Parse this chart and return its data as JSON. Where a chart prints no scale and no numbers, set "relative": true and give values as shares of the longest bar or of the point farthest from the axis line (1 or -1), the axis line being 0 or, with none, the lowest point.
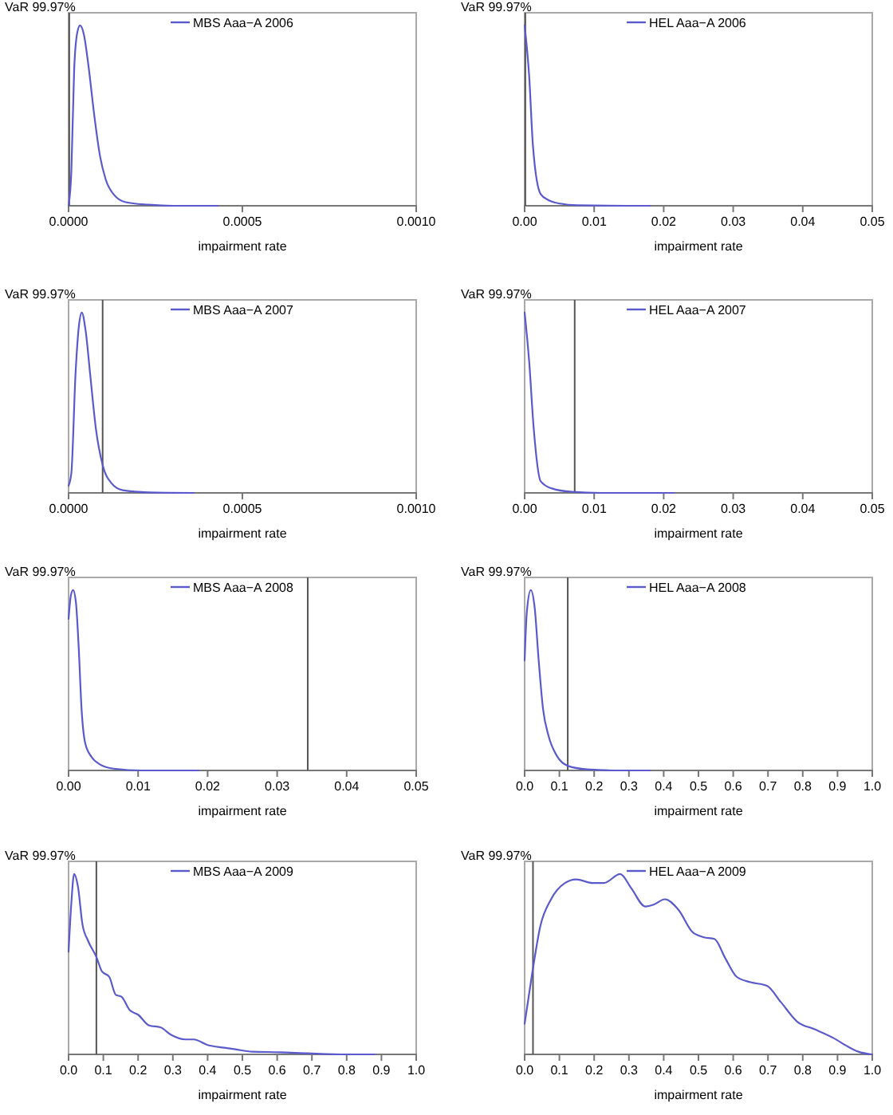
{
  "chart_data": [
    {
      "type": "line",
      "relative": true,
      "xlabel": "impairment rate",
      "xlim": [
        0,
        0.001
      ],
      "xticks": [
        {
          "value": 0,
          "label": "0.0000"
        },
        {
          "value": 0.0005,
          "label": "0.0005"
        },
        {
          "value": 0.001,
          "label": "0.0010"
        }
      ],
      "legend": "top",
      "annotations": [
        "VaR 99.97%"
      ],
      "ref_lines": [
        {
          "axis": "x",
          "value": 2e-06,
          "color": "#555555"
        }
      ],
      "series": [
        {
          "name": "MBS Aaa−A 2006",
          "color": "#5a5acd",
          "x": [
            0,
            8e-06,
            1.6e-05,
            2.5e-05,
            3.3e-05,
            4.4e-05,
            5.7e-05,
            7.4e-05,
            9e-05,
            0.000107,
            0.000131,
            0.000164,
            0.00023,
            0.0003,
            0.00043
          ],
          "values": [
            0,
            0.19,
            0.75,
            0.96,
            1,
            0.95,
            0.78,
            0.5,
            0.28,
            0.145,
            0.06,
            0.02,
            0.006,
            0,
            0
          ]
        }
      ]
    },
    {
      "type": "line",
      "relative": true,
      "xlabel": "impairment rate",
      "xlim": [
        0,
        0.05
      ],
      "xticks": [
        {
          "value": 0,
          "label": "0.00"
        },
        {
          "value": 0.01,
          "label": "0.01"
        },
        {
          "value": 0.02,
          "label": "0.02"
        },
        {
          "value": 0.03,
          "label": "0.03"
        },
        {
          "value": 0.04,
          "label": "0.04"
        },
        {
          "value": 0.05,
          "label": "0.05"
        }
      ],
      "legend": "top",
      "annotations": [
        "VaR 99.97%"
      ],
      "ref_lines": [
        {
          "axis": "x",
          "value": 0.0001,
          "color": "#555555"
        }
      ],
      "series": [
        {
          "name": "HEL Aaa−A 2006",
          "color": "#5a5acd",
          "x": [
            0,
            0.00065,
            0.0012,
            0.0023,
            0.0035,
            0.0051,
            0.0076,
            0.015,
            0.018
          ],
          "values": [
            1,
            0.72,
            0.33,
            0.065,
            0.03,
            0.012,
            0.003,
            0,
            0
          ]
        }
      ]
    },
    {
      "type": "line",
      "relative": true,
      "xlabel": "impairment rate",
      "xlim": [
        0,
        0.001
      ],
      "xticks": [
        {
          "value": 0,
          "label": "0.0000"
        },
        {
          "value": 0.0005,
          "label": "0.0005"
        },
        {
          "value": 0.001,
          "label": "0.0010"
        }
      ],
      "legend": "top",
      "annotations": [
        "VaR 99.97%"
      ],
      "ref_lines": [
        {
          "axis": "x",
          "value": 9.8e-05,
          "color": "#555555"
        }
      ],
      "series": [
        {
          "name": "MBS Aaa−A 2007",
          "color": "#5a5acd",
          "x": [
            0,
            8e-06,
            2e-05,
            3e-05,
            3.8e-05,
            4.9e-05,
            6.2e-05,
            7.9e-05,
            9.8e-05,
            0.000123,
            0.000156,
            0.00023,
            0.00036
          ],
          "values": [
            0.04,
            0.11,
            0.66,
            0.93,
            1,
            0.9,
            0.66,
            0.35,
            0.155,
            0.055,
            0.015,
            0.003,
            0
          ]
        }
      ]
    },
    {
      "type": "line",
      "relative": true,
      "xlabel": "impairment rate",
      "xlim": [
        0,
        0.05
      ],
      "xticks": [
        {
          "value": 0,
          "label": "0.00"
        },
        {
          "value": 0.01,
          "label": "0.01"
        },
        {
          "value": 0.02,
          "label": "0.02"
        },
        {
          "value": 0.03,
          "label": "0.03"
        },
        {
          "value": 0.04,
          "label": "0.04"
        },
        {
          "value": 0.05,
          "label": "0.05"
        }
      ],
      "legend": "top",
      "annotations": [
        "VaR 99.97%"
      ],
      "ref_lines": [
        {
          "axis": "x",
          "value": 0.0072,
          "color": "#555555"
        }
      ],
      "series": [
        {
          "name": "HEL Aaa−A 2007",
          "color": "#5a5acd",
          "x": [
            0,
            0.00065,
            0.0013,
            0.0023,
            0.0039,
            0.0068,
            0.011,
            0.0215
          ],
          "values": [
            1,
            0.73,
            0.36,
            0.065,
            0.025,
            0.006,
            0,
            0
          ]
        }
      ]
    },
    {
      "type": "line",
      "relative": true,
      "xlabel": "impairment rate",
      "xlim": [
        0,
        0.05
      ],
      "xticks": [
        {
          "value": 0,
          "label": "0.00"
        },
        {
          "value": 0.01,
          "label": "0.01"
        },
        {
          "value": 0.02,
          "label": "0.02"
        },
        {
          "value": 0.03,
          "label": "0.03"
        },
        {
          "value": 0.04,
          "label": "0.04"
        },
        {
          "value": 0.05,
          "label": "0.05"
        }
      ],
      "legend": "top",
      "annotations": [
        "VaR 99.97%"
      ],
      "ref_lines": [
        {
          "axis": "x",
          "value": 0.0344,
          "color": "#555555"
        }
      ],
      "series": [
        {
          "name": "MBS Aaa−A 2008",
          "color": "#5a5acd",
          "x": [
            0,
            0.00033,
            0.00065,
            0.00106,
            0.00146,
            0.00187,
            0.0024,
            0.0033,
            0.0045,
            0.0065,
            0.0106,
            0.0187
          ],
          "values": [
            0.84,
            0.97,
            1,
            0.93,
            0.68,
            0.34,
            0.15,
            0.075,
            0.034,
            0.01,
            0,
            0
          ]
        }
      ]
    },
    {
      "type": "line",
      "relative": true,
      "xlabel": "impairment rate",
      "xlim": [
        0,
        1
      ],
      "xticks": [
        {
          "value": 0,
          "label": "0.0"
        },
        0.1,
        0.2,
        0.3,
        0.4,
        0.5,
        0.6,
        0.7,
        0.8,
        0.9,
        {
          "value": 1,
          "label": "1.0"
        }
      ],
      "legend": "top",
      "annotations": [
        "VaR 99.97%"
      ],
      "ref_lines": [
        {
          "axis": "x",
          "value": 0.124,
          "color": "#555555"
        }
      ],
      "series": [
        {
          "name": "HEL Aaa−A 2008",
          "color": "#5a5acd",
          "x": [
            0,
            0.0064,
            0.0177,
            0.029,
            0.04,
            0.053,
            0.069,
            0.093,
            0.125,
            0.18,
            0.26,
            0.36
          ],
          "values": [
            0.61,
            0.88,
            1,
            0.9,
            0.62,
            0.34,
            0.19,
            0.08,
            0.025,
            0.006,
            0,
            0
          ]
        }
      ]
    },
    {
      "type": "line",
      "relative": true,
      "xlabel": "impairment rate",
      "xlim": [
        0,
        1
      ],
      "xticks": [
        {
          "value": 0,
          "label": "0.0"
        },
        0.1,
        0.2,
        0.3,
        0.4,
        0.5,
        0.6,
        0.7,
        0.8,
        0.9,
        {
          "value": 1,
          "label": "1.0"
        }
      ],
      "legend": "top",
      "annotations": [
        "VaR 99.97%"
      ],
      "ref_lines": [
        {
          "axis": "x",
          "value": 0.08,
          "color": "#555555"
        }
      ],
      "series": [
        {
          "name": "MBS Aaa−A 2009",
          "color": "#5a5acd",
          "x": [
            0,
            0.008,
            0.016,
            0.027,
            0.04,
            0.056,
            0.08,
            0.096,
            0.117,
            0.136,
            0.152,
            0.176,
            0.2,
            0.232,
            0.264,
            0.296,
            0.336,
            0.36,
            0.4,
            0.448,
            0.48,
            0.528,
            0.608,
            0.688,
            0.8,
            0.88
          ],
          "values": [
            0.57,
            0.84,
            1,
            0.93,
            0.72,
            0.63,
            0.54,
            0.46,
            0.43,
            0.33,
            0.32,
            0.245,
            0.22,
            0.16,
            0.15,
            0.107,
            0.083,
            0.083,
            0.052,
            0.037,
            0.028,
            0.015,
            0.012,
            0.006,
            0,
            0
          ]
        }
      ]
    },
    {
      "type": "line",
      "relative": true,
      "xlabel": "impairment rate",
      "xlim": [
        0,
        1
      ],
      "xticks": [
        {
          "value": 0,
          "label": "0.0"
        },
        0.1,
        0.2,
        0.3,
        0.4,
        0.5,
        0.6,
        0.7,
        0.8,
        0.9,
        {
          "value": 1,
          "label": "1.0"
        }
      ],
      "legend": "top",
      "annotations": [
        "VaR 99.97%"
      ],
      "ref_lines": [
        {
          "axis": "x",
          "value": 0.024,
          "color": "#555555"
        }
      ],
      "series": [
        {
          "name": "HEL Aaa−A 2009",
          "color": "#5a5acd",
          "x": [
            0,
            0.021,
            0.045,
            0.076,
            0.116,
            0.148,
            0.196,
            0.228,
            0.275,
            0.307,
            0.347,
            0.371,
            0.403,
            0.443,
            0.482,
            0.514,
            0.546,
            0.578,
            0.61,
            0.65,
            0.697,
            0.737,
            0.785,
            0.833,
            0.889,
            0.928,
            0.96,
            1
          ],
          "values": [
            0.17,
            0.44,
            0.71,
            0.86,
            0.95,
            0.97,
            0.95,
            0.95,
            1,
            0.92,
            0.82,
            0.83,
            0.86,
            0.8,
            0.68,
            0.65,
            0.64,
            0.53,
            0.43,
            0.4,
            0.38,
            0.29,
            0.18,
            0.14,
            0.09,
            0.045,
            0.015,
            0
          ]
        }
      ]
    }
  ]
}
